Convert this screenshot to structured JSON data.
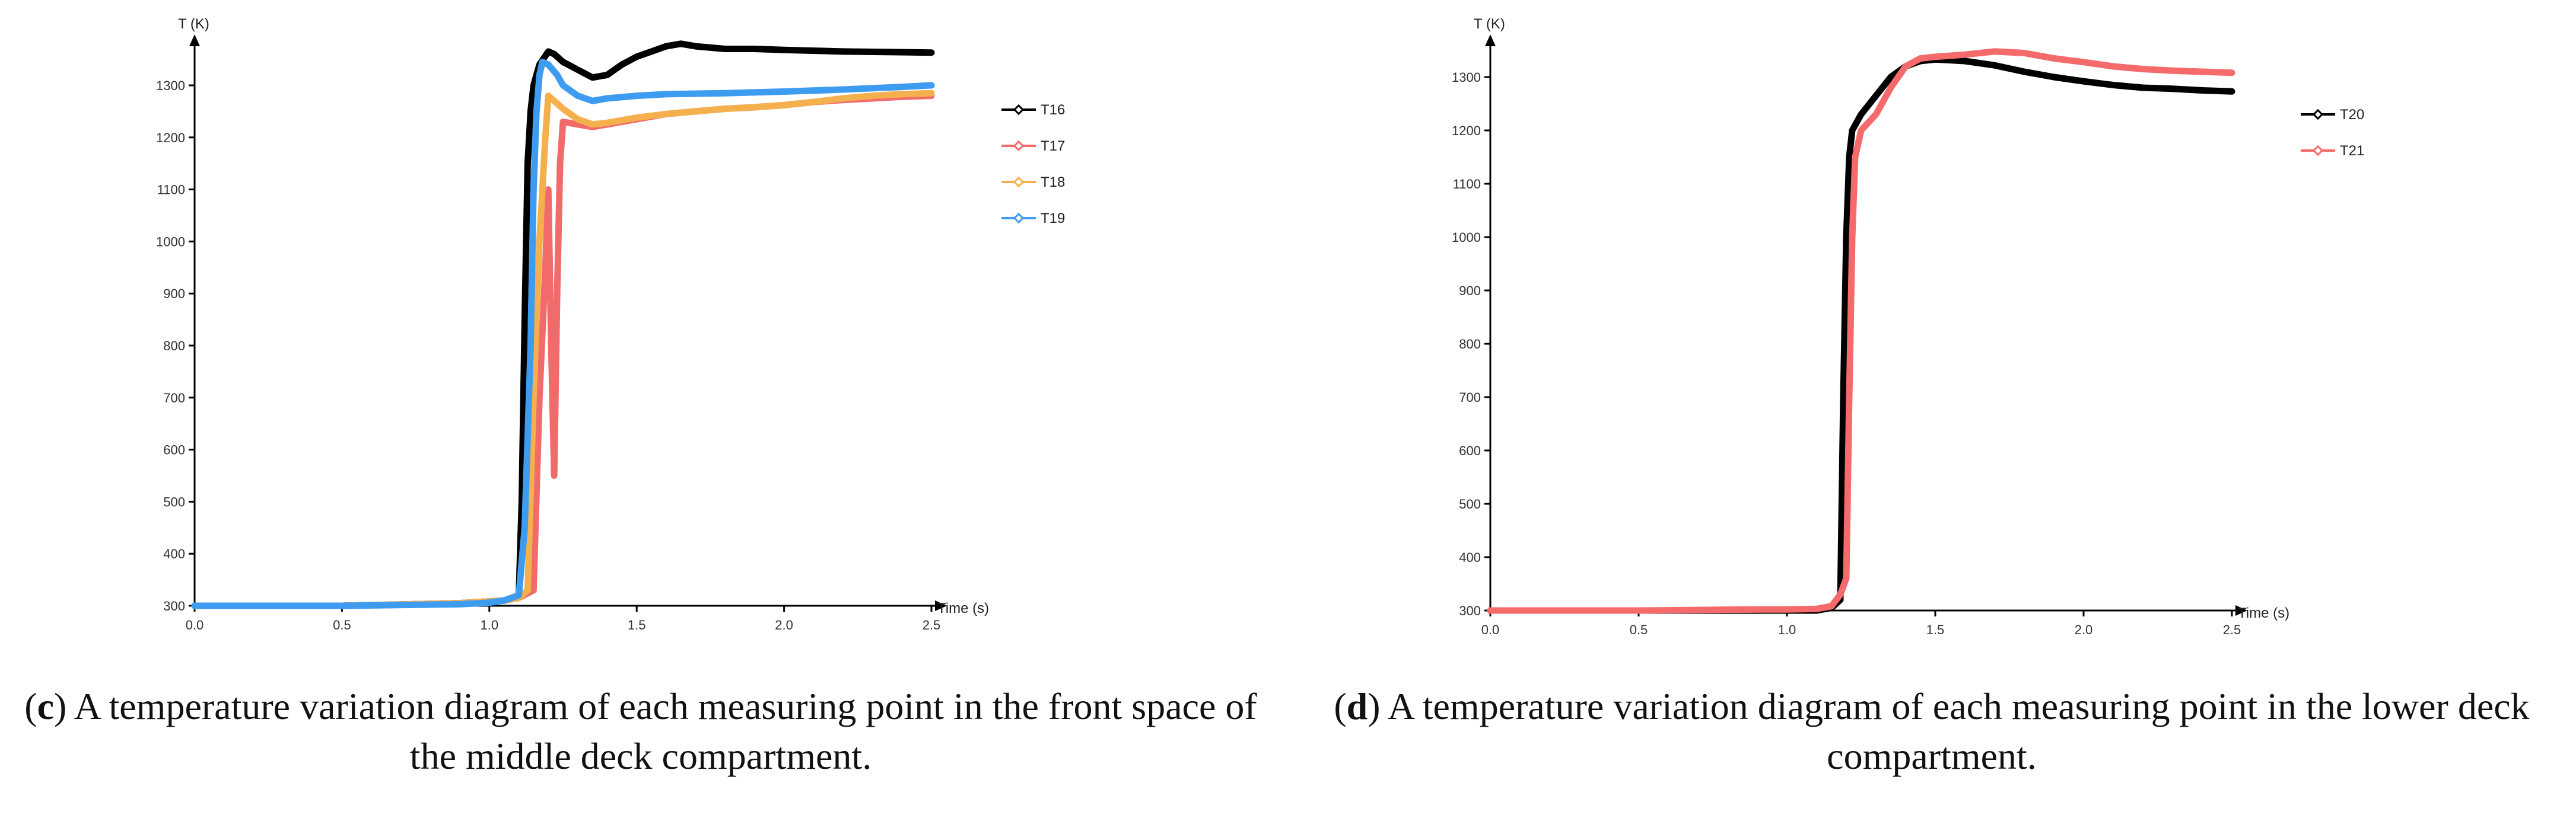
{
  "panels": [
    {
      "caption_letter": "c",
      "caption_prefix": "(",
      "caption_suffix": ")",
      "caption_text": " A temperature variation diagram of each measuring point in the front space of the middle deck compartment."
    },
    {
      "caption_letter": "d",
      "caption_prefix": "(",
      "caption_suffix": ")",
      "caption_text": " A temperature variation diagram of each measuring point in the lower deck compartment."
    }
  ],
  "chart_data": [
    {
      "type": "line",
      "title": "",
      "xlabel": "Time (s)",
      "ylabel": "T (K)",
      "xlim": [
        0.0,
        2.5
      ],
      "ylim": [
        300,
        1350
      ],
      "xticks": [
        "0.0",
        "0.5",
        "1.0",
        "1.5",
        "2.0",
        "2.5"
      ],
      "yticks": [
        "300",
        "400",
        "500",
        "600",
        "700",
        "800",
        "900",
        "1000",
        "1100",
        "1200",
        "1300"
      ],
      "legend_position": "right",
      "series": [
        {
          "name": "T16",
          "color": "#000000",
          "x": [
            0.0,
            0.5,
            0.9,
            1.05,
            1.1,
            1.11,
            1.12,
            1.13,
            1.14,
            1.15,
            1.17,
            1.2,
            1.22,
            1.25,
            1.3,
            1.35,
            1.4,
            1.45,
            1.5,
            1.55,
            1.6,
            1.65,
            1.7,
            1.8,
            1.9,
            2.0,
            2.2,
            2.5
          ],
          "y": [
            300,
            300,
            305,
            310,
            320,
            500,
            850,
            1150,
            1250,
            1300,
            1340,
            1365,
            1360,
            1345,
            1330,
            1315,
            1320,
            1340,
            1355,
            1365,
            1375,
            1380,
            1375,
            1370,
            1370,
            1368,
            1365,
            1363
          ]
        },
        {
          "name": "T17",
          "color": "#f26b6b",
          "x": [
            0.0,
            0.5,
            0.9,
            1.05,
            1.1,
            1.15,
            1.17,
            1.19,
            1.2,
            1.21,
            1.22,
            1.23,
            1.24,
            1.25,
            1.3,
            1.35,
            1.4,
            1.5,
            1.6,
            1.7,
            1.8,
            1.9,
            2.0,
            2.1,
            2.2,
            2.3,
            2.4,
            2.5
          ],
          "y": [
            300,
            300,
            305,
            310,
            315,
            330,
            700,
            950,
            1100,
            800,
            550,
            900,
            1150,
            1230,
            1225,
            1220,
            1225,
            1235,
            1245,
            1250,
            1255,
            1258,
            1262,
            1268,
            1272,
            1275,
            1278,
            1280
          ]
        },
        {
          "name": "T18",
          "color": "#f5b04e",
          "x": [
            0.0,
            0.5,
            0.9,
            1.05,
            1.1,
            1.13,
            1.15,
            1.17,
            1.19,
            1.2,
            1.22,
            1.25,
            1.3,
            1.35,
            1.4,
            1.5,
            1.6,
            1.7,
            1.8,
            1.9,
            2.0,
            2.1,
            2.2,
            2.3,
            2.4,
            2.5
          ],
          "y": [
            300,
            300,
            305,
            310,
            315,
            330,
            700,
            1000,
            1200,
            1280,
            1270,
            1255,
            1235,
            1225,
            1228,
            1238,
            1245,
            1250,
            1255,
            1258,
            1262,
            1268,
            1275,
            1280,
            1283,
            1285
          ]
        },
        {
          "name": "T19",
          "color": "#3e9cf0",
          "x": [
            0.0,
            0.5,
            0.9,
            1.0,
            1.05,
            1.1,
            1.12,
            1.14,
            1.15,
            1.16,
            1.17,
            1.18,
            1.2,
            1.23,
            1.25,
            1.3,
            1.35,
            1.4,
            1.5,
            1.6,
            1.8,
            2.0,
            2.2,
            2.4,
            2.5
          ],
          "y": [
            300,
            300,
            303,
            306,
            310,
            320,
            450,
            800,
            1100,
            1250,
            1320,
            1345,
            1340,
            1320,
            1300,
            1280,
            1270,
            1275,
            1280,
            1283,
            1285,
            1288,
            1292,
            1297,
            1300
          ]
        }
      ]
    },
    {
      "type": "line",
      "title": "",
      "xlabel": "Time (s)",
      "ylabel": "T (K)",
      "xlim": [
        0.0,
        2.5
      ],
      "ylim": [
        300,
        1350
      ],
      "xticks": [
        "0.0",
        "0.5",
        "1.0",
        "1.5",
        "2.0",
        "2.5"
      ],
      "yticks": [
        "300",
        "400",
        "500",
        "600",
        "700",
        "800",
        "900",
        "1000",
        "1100",
        "1200",
        "1300"
      ],
      "legend_position": "right",
      "series": [
        {
          "name": "T20",
          "color": "#000000",
          "x": [
            0.0,
            0.5,
            1.0,
            1.1,
            1.15,
            1.18,
            1.19,
            1.2,
            1.21,
            1.22,
            1.25,
            1.3,
            1.35,
            1.4,
            1.45,
            1.5,
            1.6,
            1.7,
            1.8,
            1.9,
            2.0,
            2.1,
            2.2,
            2.3,
            2.4,
            2.5
          ],
          "y": [
            300,
            300,
            300,
            300,
            305,
            320,
            700,
            1000,
            1150,
            1200,
            1230,
            1265,
            1300,
            1320,
            1330,
            1333,
            1330,
            1322,
            1310,
            1300,
            1292,
            1285,
            1280,
            1278,
            1275,
            1273
          ]
        },
        {
          "name": "T21",
          "color": "#f56b6b",
          "x": [
            0.0,
            0.5,
            0.9,
            1.0,
            1.1,
            1.15,
            1.18,
            1.2,
            1.21,
            1.22,
            1.23,
            1.25,
            1.3,
            1.35,
            1.4,
            1.45,
            1.5,
            1.6,
            1.7,
            1.8,
            1.9,
            2.0,
            2.1,
            2.2,
            2.3,
            2.4,
            2.5
          ],
          "y": [
            300,
            300,
            302,
            302,
            303,
            308,
            330,
            360,
            700,
            1000,
            1150,
            1200,
            1230,
            1280,
            1320,
            1335,
            1338,
            1342,
            1348,
            1345,
            1335,
            1328,
            1320,
            1315,
            1312,
            1310,
            1308
          ]
        }
      ]
    }
  ]
}
